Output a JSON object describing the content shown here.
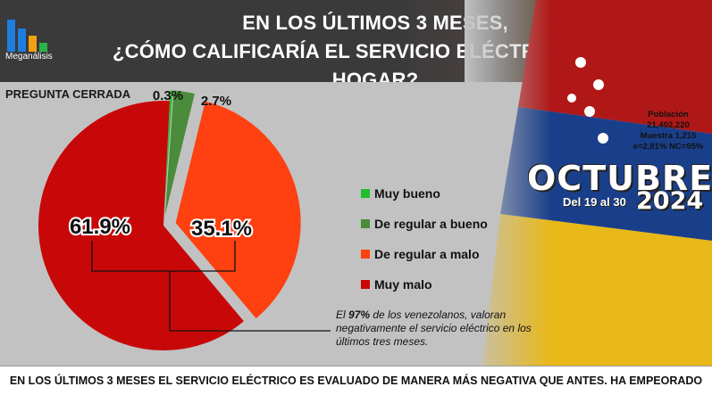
{
  "header": {
    "title_line1": "EN LOS ÚLTIMOS 3 MESES,",
    "title_line2": "¿CÓMO CALIFICARÍA EL SERVICIO ELÉCTRICO EN SU HOGAR?",
    "brand": "Meganálisis"
  },
  "closed_label": "PREGUNTA CERRADA",
  "chart_data": {
    "type": "pie",
    "categories": [
      "Muy bueno",
      "De regular a bueno",
      "De regular a malo",
      "Muy malo"
    ],
    "values": [
      0.3,
      2.7,
      35.1,
      61.9
    ],
    "value_labels": [
      "0.3%",
      "2.7%",
      "35.1%",
      "61.9%"
    ],
    "colors": [
      "#1fbf2c",
      "#4a8c3a",
      "#ff4010",
      "#c80808"
    ],
    "legend_position": "right"
  },
  "stats": {
    "poblacion_label": "Población",
    "poblacion_value": "21,402,220",
    "muestra": "Muestra 1,215",
    "error": "e=2,81%  NC=95%"
  },
  "period": {
    "month": "OCTUBRE",
    "dates": "Del 19 al 30",
    "year": "2024"
  },
  "note": {
    "prefix": "El ",
    "highlight": "97%",
    "rest": " de los venezolanos, valoran negativamente el servicio eléctrico en los últimos tres meses."
  },
  "footer": "EN LOS ÚLTIMOS 3 MESES EL SERVICIO ELÉCTRICO ES EVALUADO DE MANERA MÁS NEGATIVA QUE ANTES. HA EMPEORADO"
}
